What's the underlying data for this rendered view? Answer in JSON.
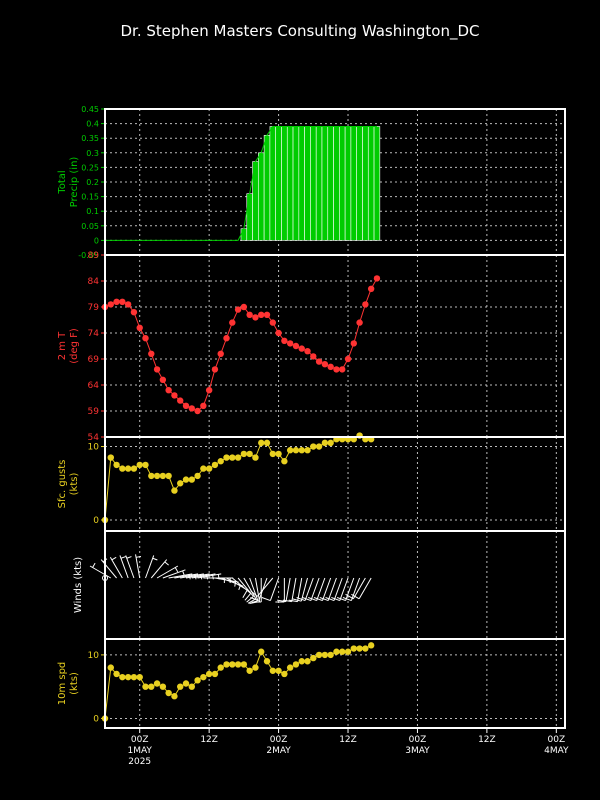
{
  "title": "Dr. Stephen Masters Consulting  Washington_DC",
  "colors": {
    "background": "#000000",
    "frame": "#ffffff",
    "grid": "#bbbbbb",
    "precip": "#00cc00",
    "temp": "#ff3333",
    "gust": "#e8d020",
    "wind": "#ffffff",
    "speed": "#e8d020"
  },
  "x_axis": {
    "labels": [
      "00Z",
      "12Z",
      "00Z",
      "12Z",
      "00Z",
      "12Z",
      "00Z"
    ],
    "hours": [
      0,
      12,
      24,
      36,
      48,
      60,
      72
    ],
    "dates": [
      "1MAY",
      "2MAY",
      "3MAY",
      "4MAY"
    ],
    "date_hours": [
      0,
      24,
      48,
      72
    ],
    "year": "2025",
    "range": [
      -6,
      73.5
    ]
  },
  "chart_data": [
    {
      "type": "bar",
      "name": "precip",
      "ylabel": [
        "Total",
        "Precip (in)"
      ],
      "ylim": [
        -0.05,
        0.45
      ],
      "ticks": [
        -0.05,
        0,
        0.05,
        0.1,
        0.15,
        0.2,
        0.25,
        0.3,
        0.35,
        0.4,
        0.45
      ],
      "tick_labels": [
        "-0.05",
        "0",
        "0.05",
        "0.1",
        "0.15",
        "0.2",
        "0.25",
        "0.3",
        "0.35",
        "0.4",
        "0.45"
      ],
      "x": [
        -6,
        -5,
        -4,
        -3,
        -2,
        -1,
        0,
        1,
        2,
        3,
        4,
        5,
        6,
        7,
        8,
        9,
        10,
        11,
        12,
        13,
        14,
        15,
        16,
        17,
        18,
        19,
        20,
        21,
        22,
        23,
        24,
        25,
        26,
        27,
        28,
        29,
        30,
        31,
        32,
        33,
        34,
        35,
        36,
        37,
        38,
        39,
        40,
        41
      ],
      "values": [
        0,
        0,
        0,
        0,
        0,
        0,
        0,
        0,
        0,
        0,
        0,
        0,
        0,
        0,
        0,
        0,
        0,
        0,
        0,
        0,
        0,
        0,
        0,
        0,
        0.04,
        0.16,
        0.27,
        0.3,
        0.36,
        0.39,
        0.39,
        0.39,
        0.39,
        0.39,
        0.39,
        0.39,
        0.39,
        0.39,
        0.39,
        0.39,
        0.39,
        0.39,
        0.39,
        0.39,
        0.39,
        0.39,
        0.39,
        0.39
      ]
    },
    {
      "type": "line",
      "name": "temperature",
      "ylabel": [
        "2 m T",
        "(deg F)"
      ],
      "ylim": [
        54,
        89
      ],
      "ticks": [
        54,
        59,
        64,
        69,
        74,
        79,
        84,
        89
      ],
      "tick_labels": [
        "54",
        "59",
        "64",
        "69",
        "74",
        "79",
        "84",
        "89"
      ],
      "x": [
        -6,
        -5,
        -4,
        -3,
        -2,
        -1,
        0,
        1,
        2,
        3,
        4,
        5,
        6,
        7,
        8,
        9,
        10,
        11,
        12,
        13,
        14,
        15,
        16,
        17,
        18,
        19,
        20,
        21,
        22,
        23,
        24,
        25,
        26,
        27,
        28,
        29,
        30,
        31,
        32,
        33,
        34,
        35,
        36,
        37,
        38,
        39,
        40,
        41
      ],
      "values": [
        79,
        79.5,
        80,
        80,
        79.5,
        78,
        75,
        73,
        70,
        67,
        65,
        63,
        62,
        61,
        60,
        59.5,
        59,
        60,
        63,
        67,
        70,
        73,
        76,
        78.5,
        79,
        77.5,
        77,
        77.5,
        77.5,
        76,
        74,
        72.5,
        72,
        71.5,
        71,
        70.5,
        69.5,
        68.5,
        68,
        67.5,
        67,
        67,
        69,
        72,
        76,
        79.5,
        82.5,
        84.5
      ]
    },
    {
      "type": "line",
      "name": "gusts",
      "ylabel": [
        "Sfc. gusts",
        "(kts)"
      ],
      "ylim": [
        -1.5,
        11.3
      ],
      "ticks": [
        0,
        10
      ],
      "tick_labels": [
        "0",
        "10"
      ],
      "x": [
        -6,
        -5,
        -4,
        -3,
        -2,
        -1,
        0,
        1,
        2,
        3,
        4,
        5,
        6,
        7,
        8,
        9,
        10,
        11,
        12,
        13,
        14,
        15,
        16,
        17,
        18,
        19,
        20,
        21,
        22,
        23,
        24,
        25,
        26,
        27,
        28,
        29,
        30,
        31,
        32,
        33,
        34,
        35,
        36,
        37,
        38,
        39,
        40
      ],
      "values": [
        0,
        8.5,
        7.5,
        7,
        7,
        7,
        7.5,
        7.5,
        6,
        6,
        6,
        6,
        4,
        5,
        5.5,
        5.5,
        6,
        7,
        7,
        7.5,
        8,
        8.5,
        8.5,
        8.5,
        9,
        9,
        8.5,
        10.5,
        10.5,
        9,
        9,
        8,
        9.5,
        9.5,
        9.5,
        9.5,
        10,
        10,
        10.5,
        10.5,
        11,
        11,
        11,
        11,
        11.5,
        11,
        11
      ]
    },
    {
      "type": "barbs",
      "name": "winds",
      "ylabel": [
        "Winds (kts)"
      ],
      "x": [
        -6,
        -5,
        -4,
        -3,
        -2,
        -1,
        0,
        1,
        2,
        3,
        4,
        5,
        6,
        7,
        8,
        9,
        10,
        11,
        12,
        13,
        14,
        15,
        16,
        17,
        18,
        19,
        20,
        21,
        22,
        23,
        24,
        25,
        26,
        27,
        28,
        29,
        30,
        31,
        32,
        33,
        34,
        35,
        36,
        37,
        38,
        39,
        40
      ],
      "dir_deg": [
        250,
        300,
        320,
        330,
        340,
        340,
        350,
        20,
        40,
        60,
        70,
        80,
        80,
        80,
        80,
        80,
        80,
        90,
        90,
        100,
        110,
        120,
        130,
        140,
        150,
        160,
        170,
        180,
        200,
        220,
        200,
        180,
        190,
        190,
        190,
        195,
        200,
        200,
        200,
        200,
        200,
        200,
        200,
        200,
        200,
        210,
        210
      ],
      "speed_kts": [
        0,
        7,
        7,
        7,
        7,
        7,
        6,
        6,
        5,
        5,
        5,
        5,
        4,
        5,
        5,
        5,
        5,
        6,
        7,
        7,
        7,
        8,
        8,
        8,
        9,
        9,
        8,
        10,
        10,
        9,
        9,
        9,
        9,
        9,
        9,
        9,
        10,
        10,
        10,
        10,
        10,
        10,
        10,
        10,
        10,
        11,
        11
      ]
    },
    {
      "type": "line",
      "name": "wind10m",
      "ylabel": [
        "10m spd",
        "(kts)"
      ],
      "ylim": [
        -1.5,
        12.5
      ],
      "ticks": [
        0,
        10
      ],
      "tick_labels": [
        "0",
        "10"
      ],
      "x": [
        -6,
        -5,
        -4,
        -3,
        -2,
        -1,
        0,
        1,
        2,
        3,
        4,
        5,
        6,
        7,
        8,
        9,
        10,
        11,
        12,
        13,
        14,
        15,
        16,
        17,
        18,
        19,
        20,
        21,
        22,
        23,
        24,
        25,
        26,
        27,
        28,
        29,
        30,
        31,
        32,
        33,
        34,
        35,
        36,
        37,
        38,
        39,
        40
      ],
      "values": [
        0,
        8,
        7,
        6.5,
        6.5,
        6.5,
        6.5,
        5,
        5,
        5.5,
        5,
        4,
        3.5,
        5,
        5.5,
        5,
        6,
        6.5,
        7,
        7,
        8,
        8.5,
        8.5,
        8.5,
        8.5,
        7.5,
        8,
        10.5,
        9,
        7.5,
        7.5,
        7,
        8,
        8.5,
        9,
        9,
        9.5,
        10,
        10,
        10,
        10.5,
        10.5,
        10.5,
        11,
        11,
        11,
        11.5
      ]
    }
  ]
}
